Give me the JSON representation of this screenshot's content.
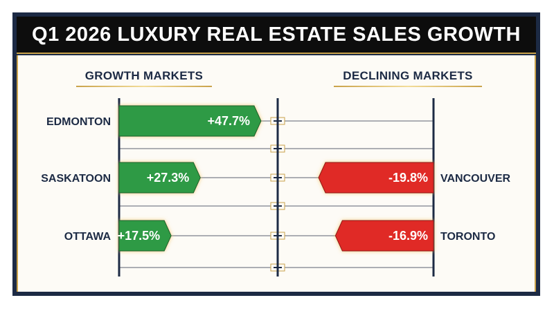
{
  "title": "Q1 2026 LUXURY REAL ESTATE SALES GROWTH",
  "headers": {
    "growth": "GROWTH MARKETS",
    "declining": "DECLINING MARKETS"
  },
  "colors": {
    "growth": "#2e9a45",
    "decline": "#e02a26",
    "navy": "#1c2a44",
    "gold": "#c9a24a"
  },
  "chart_data": {
    "type": "bar",
    "title": "Q1 2026 LUXURY REAL ESTATE SALES GROWTH",
    "growth": [
      {
        "city": "EDMONTON",
        "value": 47.7,
        "label": "+47.7%"
      },
      {
        "city": "SASKATOON",
        "value": 27.3,
        "label": "+27.3%"
      },
      {
        "city": "OTTAWA",
        "value": 17.5,
        "label": "+17.5%"
      }
    ],
    "declining": [
      {
        "city": "VANCOUVER",
        "value": -19.8,
        "label": "-19.8%"
      },
      {
        "city": "TORONTO",
        "value": -16.9,
        "label": "-16.9%"
      }
    ]
  }
}
